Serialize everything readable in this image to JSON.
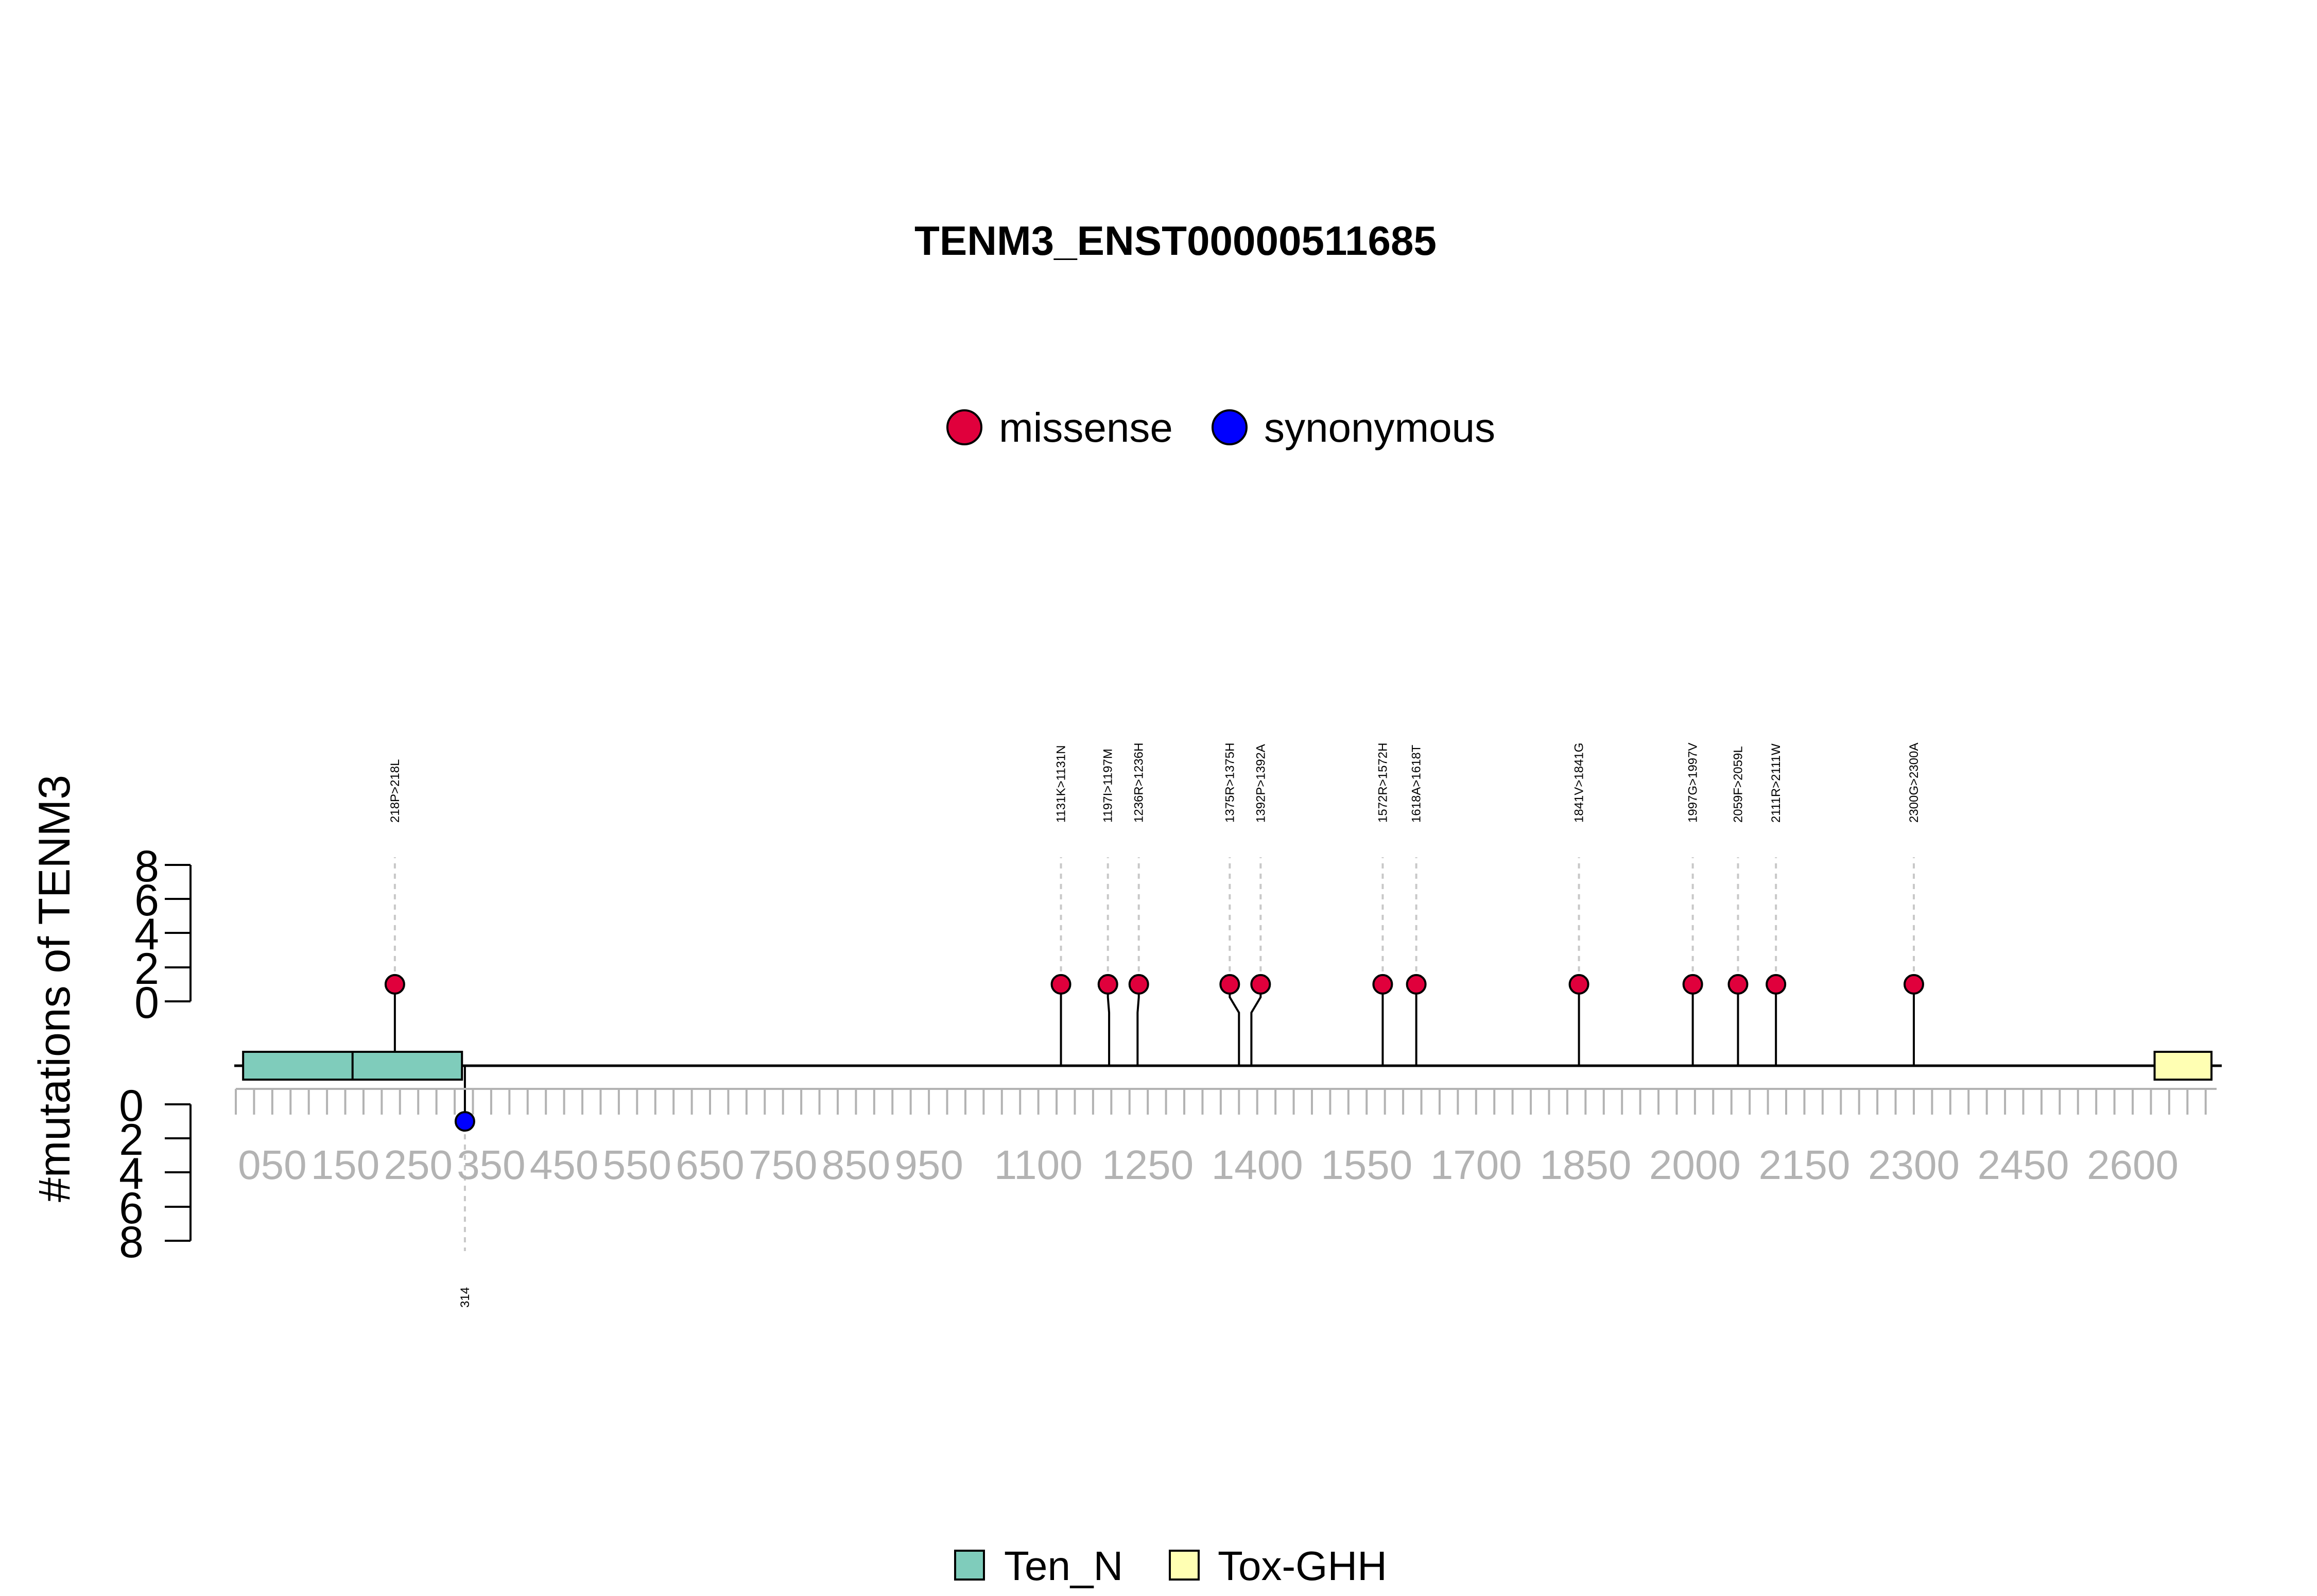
{
  "chart_data": {
    "type": "lollipop",
    "title": "TENM3_ENST00000511685",
    "ylabel": "#mutations of TENM3",
    "legend": [
      {
        "name": "missense",
        "color": "#e0003c"
      },
      {
        "name": "synonymous",
        "color": "#0000ff"
      }
    ],
    "domain_legend": [
      {
        "name": "Ten_N",
        "color": "#7fccbb"
      },
      {
        "name": "Tox-GHH",
        "color": "#ffffb3"
      }
    ],
    "xlim": [
      0,
      2715
    ],
    "upper_ylim": [
      0,
      8
    ],
    "lower_ylim": [
      0,
      8
    ],
    "upper_yticks": [
      "8",
      "6",
      "4",
      "2",
      "0"
    ],
    "lower_yticks": [
      "0",
      "2",
      "4",
      "6",
      "8"
    ],
    "x_tick_labels": [
      {
        "v": 50,
        "t": "050"
      },
      {
        "v": 150,
        "t": "150"
      },
      {
        "v": 250,
        "t": "250"
      },
      {
        "v": 350,
        "t": "350"
      },
      {
        "v": 450,
        "t": "450"
      },
      {
        "v": 550,
        "t": "550"
      },
      {
        "v": 650,
        "t": "650"
      },
      {
        "v": 750,
        "t": "750"
      },
      {
        "v": 850,
        "t": "850"
      },
      {
        "v": 950,
        "t": "950"
      },
      {
        "v": 1100,
        "t": "1100"
      },
      {
        "v": 1250,
        "t": "1250"
      },
      {
        "v": 1400,
        "t": "1400"
      },
      {
        "v": 1550,
        "t": "1550"
      },
      {
        "v": 1700,
        "t": "1700"
      },
      {
        "v": 1850,
        "t": "1850"
      },
      {
        "v": 2000,
        "t": "2000"
      },
      {
        "v": 2150,
        "t": "2150"
      },
      {
        "v": 2300,
        "t": "2300"
      },
      {
        "v": 2450,
        "t": "2450"
      },
      {
        "v": 2600,
        "t": "2600"
      }
    ],
    "domains": [
      {
        "name": "Ten_N",
        "start": 10,
        "end": 310,
        "color": "#7fccbb"
      },
      {
        "name": "Tox-GHH",
        "start": 2630,
        "end": 2708,
        "color": "#ffffb3"
      }
    ],
    "mutations_above": [
      {
        "pos": 218,
        "label": "218P>218L",
        "count": 1,
        "type": "missense"
      },
      {
        "pos": 1131,
        "label": "1131K>1131N",
        "count": 1,
        "type": "missense"
      },
      {
        "pos": 1197,
        "label": "1197I>1197M",
        "count": 1,
        "type": "missense"
      },
      {
        "pos": 1236,
        "label": "1236R>1236H",
        "count": 1,
        "type": "missense"
      },
      {
        "pos": 1375,
        "label": "1375R>1375H",
        "count": 1,
        "type": "missense"
      },
      {
        "pos": 1392,
        "label": "1392P>1392A",
        "count": 1,
        "type": "missense"
      },
      {
        "pos": 1572,
        "label": "1572R>1572H",
        "count": 1,
        "type": "missense"
      },
      {
        "pos": 1618,
        "label": "1618A>1618T",
        "count": 1,
        "type": "missense"
      },
      {
        "pos": 1841,
        "label": "1841V>1841G",
        "count": 1,
        "type": "missense"
      },
      {
        "pos": 1997,
        "label": "1997G>1997V",
        "count": 1,
        "type": "missense"
      },
      {
        "pos": 2059,
        "label": "2059F>2059L",
        "count": 1,
        "type": "missense"
      },
      {
        "pos": 2111,
        "label": "2111R>2111W",
        "count": 1,
        "type": "missense"
      },
      {
        "pos": 2300,
        "label": "2300G>2300A",
        "count": 1,
        "type": "missense"
      }
    ],
    "mutations_below": [
      {
        "pos": 314,
        "label": "314",
        "count": 1,
        "type": "synonymous"
      }
    ]
  }
}
